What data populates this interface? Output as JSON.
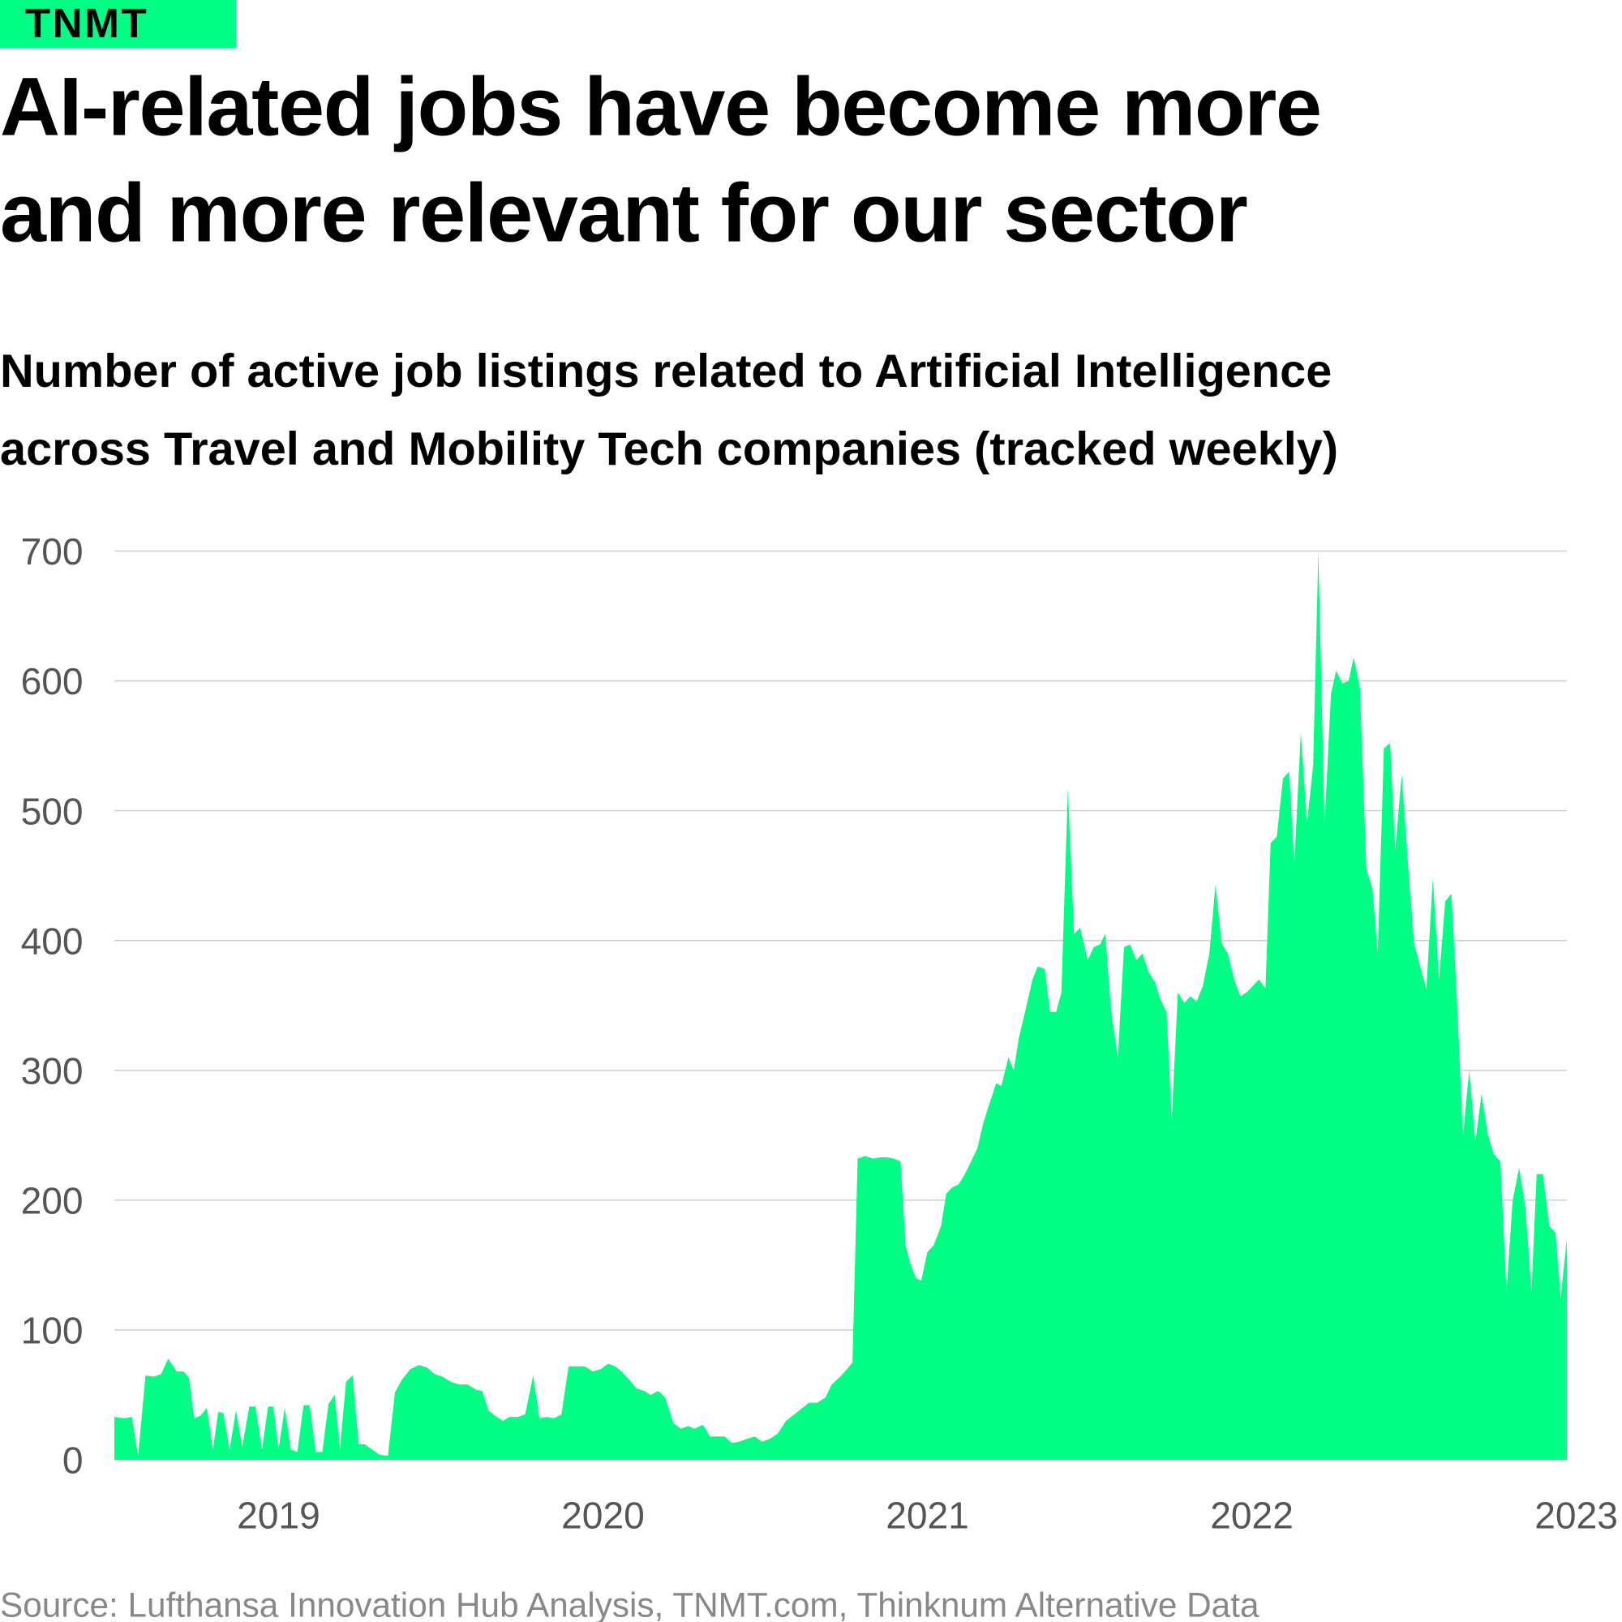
{
  "brand": "TNMT",
  "chart_data": {
    "type": "area",
    "title": [
      "AI-related jobs have become more",
      "and more relevant for our sector"
    ],
    "subtitle": [
      "Number of active job listings related to Artificial Intelligence",
      "across Travel and Mobility Tech companies (tracked weekly)"
    ],
    "source": "Source: Lufthansa Innovation Hub Analysis, TNMT.com, Thinknum Alternative Data",
    "color": "#00ff84",
    "grid": true,
    "xlim": [
      2018.494,
      2023
    ],
    "xticks": [
      2019,
      2020,
      2021,
      2022,
      2023
    ],
    "ylim": [
      0,
      700
    ],
    "yticks": [
      0,
      100,
      200,
      300,
      400,
      500,
      600,
      700
    ],
    "x": [
      2018.494,
      2018.526,
      2018.548,
      2018.567,
      2018.59,
      2018.615,
      2018.638,
      2018.66,
      2018.686,
      2018.708,
      2018.724,
      2018.74,
      2018.76,
      2018.779,
      2018.798,
      2018.814,
      2018.83,
      2018.849,
      2018.869,
      2018.888,
      2018.91,
      2018.929,
      2018.949,
      2018.968,
      2018.984,
      2019.0,
      2019.019,
      2019.038,
      2019.058,
      2019.077,
      2019.096,
      2019.115,
      2019.135,
      2019.154,
      2019.173,
      2019.189,
      2019.208,
      2019.228,
      2019.247,
      2019.266,
      2019.288,
      2019.311,
      2019.337,
      2019.359,
      2019.381,
      2019.407,
      2019.433,
      2019.458,
      2019.481,
      2019.506,
      2019.532,
      2019.558,
      2019.583,
      2019.609,
      2019.628,
      2019.647,
      2019.667,
      2019.692,
      2019.712,
      2019.737,
      2019.76,
      2019.785,
      2019.804,
      2019.827,
      2019.849,
      2019.872,
      2019.894,
      2019.92,
      2019.945,
      2019.968,
      2019.994,
      2020.016,
      2020.038,
      2020.058,
      2020.08,
      2020.103,
      2020.128,
      2020.147,
      2020.17,
      2020.192,
      2020.218,
      2020.24,
      2020.263,
      2020.282,
      2020.308,
      2020.33,
      2020.353,
      2020.375,
      2020.397,
      2020.42,
      2020.442,
      2020.468,
      2020.49,
      2020.513,
      2020.538,
      2020.564,
      2020.59,
      2020.615,
      2020.635,
      2020.66,
      2020.686,
      2020.705,
      2020.731,
      2020.753,
      2020.769,
      2020.785,
      2020.808,
      2020.833,
      2020.856,
      2020.875,
      2020.897,
      2020.917,
      2020.933,
      2020.949,
      2020.965,
      2020.981,
      2021.0,
      2021.019,
      2021.042,
      2021.058,
      2021.077,
      2021.096,
      2021.115,
      2021.135,
      2021.154,
      2021.173,
      2021.192,
      2021.212,
      2021.228,
      2021.25,
      2021.266,
      2021.282,
      2021.301,
      2021.324,
      2021.34,
      2021.362,
      2021.378,
      2021.397,
      2021.413,
      2021.433,
      2021.452,
      2021.471,
      2021.494,
      2021.513,
      2021.532,
      2021.548,
      2021.567,
      2021.587,
      2021.606,
      2021.625,
      2021.644,
      2021.663,
      2021.683,
      2021.702,
      2021.718,
      2021.737,
      2021.753,
      2021.772,
      2021.792,
      2021.811,
      2021.83,
      2021.849,
      2021.869,
      2021.888,
      2021.907,
      2021.926,
      2021.946,
      2021.965,
      2021.984,
      2022.003,
      2022.022,
      2022.042,
      2022.058,
      2022.077,
      2022.096,
      2022.115,
      2022.131,
      2022.151,
      2022.17,
      2022.189,
      2022.205,
      2022.224,
      2022.244,
      2022.26,
      2022.279,
      2022.298,
      2022.314,
      2022.333,
      2022.353,
      2022.372,
      2022.388,
      2022.407,
      2022.426,
      2022.442,
      2022.462,
      2022.481,
      2022.5,
      2022.519,
      2022.538,
      2022.558,
      2022.577,
      2022.596,
      2022.615,
      2022.631,
      2022.651,
      2022.67,
      2022.689,
      2022.708,
      2022.728,
      2022.747,
      2022.766,
      2022.785,
      2022.804,
      2022.824,
      2022.843,
      2022.862,
      2022.878,
      2022.897,
      2022.917,
      2022.936,
      2022.952,
      2022.971
    ],
    "values": [
      33,
      32,
      33,
      3,
      65,
      64,
      66,
      78,
      68,
      68,
      63,
      32,
      34,
      40,
      8,
      37,
      36,
      8,
      38,
      10,
      41,
      41,
      8,
      41,
      41,
      8,
      40,
      8,
      6,
      42,
      42,
      6,
      6,
      43,
      50,
      8,
      60,
      65,
      12,
      12,
      8,
      4,
      3,
      52,
      62,
      70,
      73,
      71,
      66,
      64,
      60,
      58,
      58,
      54,
      53,
      38,
      34,
      30,
      33,
      33,
      35,
      65,
      32,
      33,
      32,
      35,
      72,
      72,
      72,
      68,
      70,
      74,
      72,
      68,
      62,
      55,
      53,
      50,
      53,
      48,
      28,
      24,
      26,
      24,
      27,
      18,
      18,
      18,
      13,
      14,
      16,
      18,
      14,
      16,
      20,
      30,
      35,
      40,
      44,
      44,
      48,
      58,
      64,
      70,
      75,
      232,
      234,
      232,
      233,
      233,
      232,
      230,
      165,
      150,
      140,
      138,
      160,
      165,
      180,
      205,
      210,
      212,
      220,
      230,
      240,
      260,
      275,
      290,
      288,
      310,
      300,
      325,
      345,
      370,
      380,
      378,
      345,
      345,
      360,
      517,
      405,
      410,
      385,
      395,
      397,
      405,
      345,
      310,
      395,
      397,
      385,
      390,
      375,
      368,
      355,
      345,
      262,
      360,
      352,
      357,
      353,
      365,
      390,
      443,
      398,
      390,
      370,
      357,
      360,
      365,
      370,
      363,
      475,
      480,
      525,
      530,
      460,
      560,
      490,
      535,
      700,
      490,
      590,
      608,
      598,
      600,
      618,
      595,
      455,
      440,
      390,
      548,
      552,
      470,
      528,
      460,
      398,
      380,
      363,
      448,
      370,
      430,
      436,
      360,
      250,
      300,
      245,
      282,
      250,
      235,
      230,
      130,
      200,
      225,
      195,
      130,
      220,
      220,
      180,
      175,
      125,
      170
    ]
  }
}
